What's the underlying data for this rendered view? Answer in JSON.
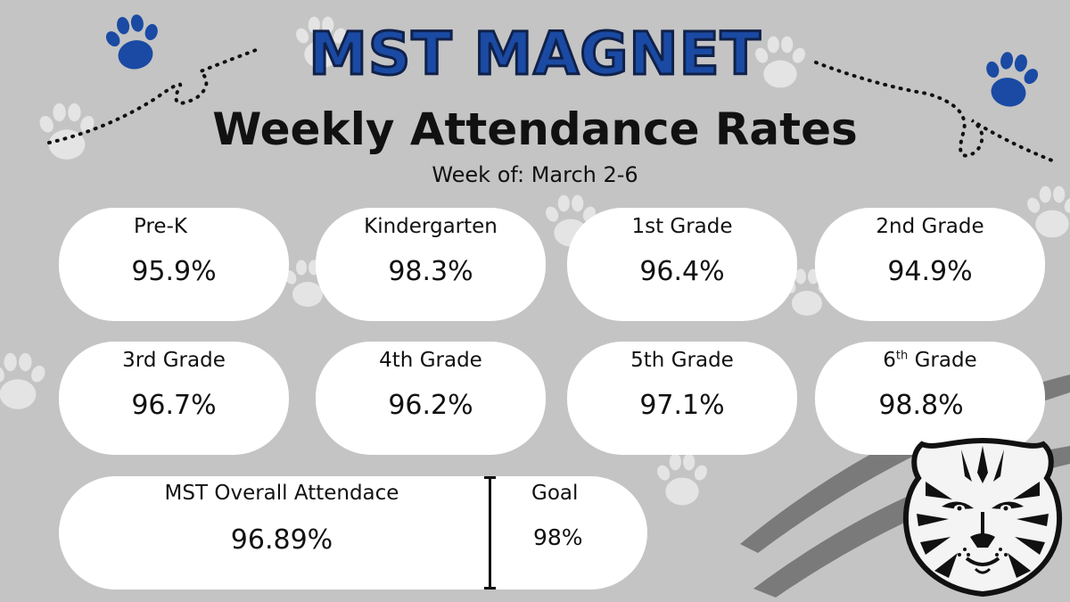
{
  "header": {
    "title": "MST MAGNET",
    "subtitle": "Weekly Attendance Rates",
    "week": "Week of: March 2-6"
  },
  "grades": [
    {
      "label": "Pre-K",
      "value": "95.9%"
    },
    {
      "label": "Kindergarten",
      "value": "98.3%"
    },
    {
      "label": "1st Grade",
      "value": "96.4%"
    },
    {
      "label": "2nd Grade",
      "value": "94.9%"
    },
    {
      "label": "3rd Grade",
      "value": "96.7%"
    },
    {
      "label": "4th Grade",
      "value": "96.2%"
    },
    {
      "label": "5th Grade",
      "value": "97.1%"
    },
    {
      "label_num": "6",
      "label_sup": "th",
      "label_rest": " Grade",
      "value": "98.8%"
    }
  ],
  "overall": {
    "label": "MST Overall Attendace",
    "value": "96.89%",
    "goal_label": "Goal",
    "goal_value": "98%"
  },
  "colors": {
    "background": "#c4c4c4",
    "title_blue": "#1a4aa3",
    "paw_blue": "#1a4aa3",
    "paw_light": "#e2e2e2",
    "pill": "#ffffff"
  },
  "icons": {
    "paw": "paw-print-icon",
    "tiger": "tiger-head-logo"
  }
}
